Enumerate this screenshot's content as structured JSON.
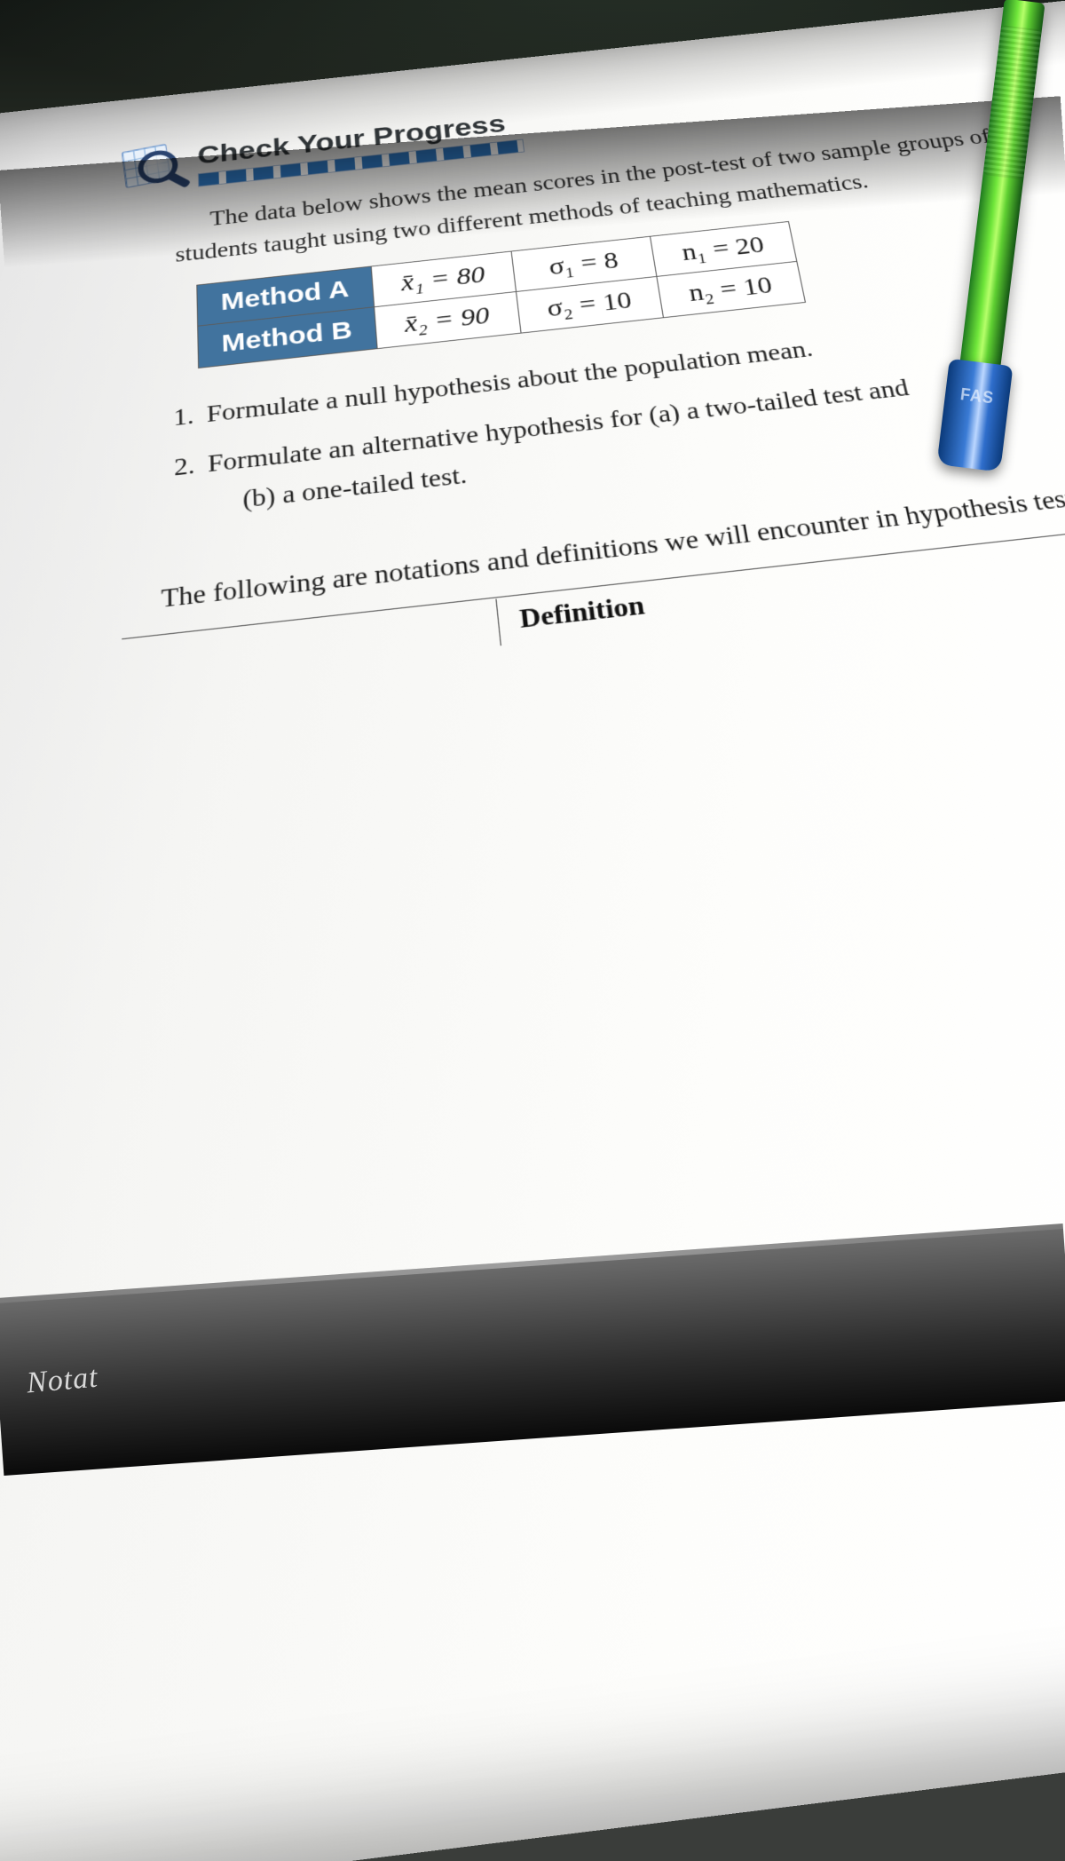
{
  "heading": {
    "title": "Check Your Progress"
  },
  "intro_line1": "The data below shows the mean scores in the post-test of two sample groups of",
  "intro_line2": "students taught using two different methods of teaching mathematics.",
  "table": {
    "rows": [
      {
        "label": "Method A",
        "mean": "x̄₁ = 80",
        "sd": "σ₁ = 8",
        "n": "n₁ = 20"
      },
      {
        "label": "Method B",
        "mean": "x̄₂ = 90",
        "sd": "σ₂ = 10",
        "n": "n₂ = 10"
      }
    ],
    "header_bg": "#41739e",
    "header_fg": "#ffffff",
    "border_color": "#5c5c5c",
    "cell_bg": "#ffffff",
    "font_size_pt": 22
  },
  "questions": {
    "q1": "Formulate a null hypothesis about the population mean.",
    "q2": "Formulate an alternative hypothesis for (a) a two-tailed test and",
    "q2b": "(b) a one-tailed test."
  },
  "footer": "The following are notations and definitions we will encounter in hypothesis testing:",
  "definition_label": "Definition",
  "corner": "Notat",
  "colors": {
    "page_bg": "#fdfdfb",
    "scene_bg": "#3a3d3a",
    "heading_color": "#303538",
    "text_color": "#2b2b2b",
    "progress_fill": "#2e78c2",
    "pen_body_gradient": [
      "#1f7a1f",
      "#6fe63a",
      "#b6ff6a",
      "#5fd032",
      "#145514"
    ],
    "pen_cap_gradient": [
      "#0b3a7a",
      "#3a7bd5",
      "#bcd7ff",
      "#2f6ecc",
      "#0b3a7a"
    ]
  },
  "typography": {
    "heading_family": "Trebuchet MS",
    "body_family": "Georgia",
    "heading_size_pt": 26,
    "body_size_pt": 20
  }
}
